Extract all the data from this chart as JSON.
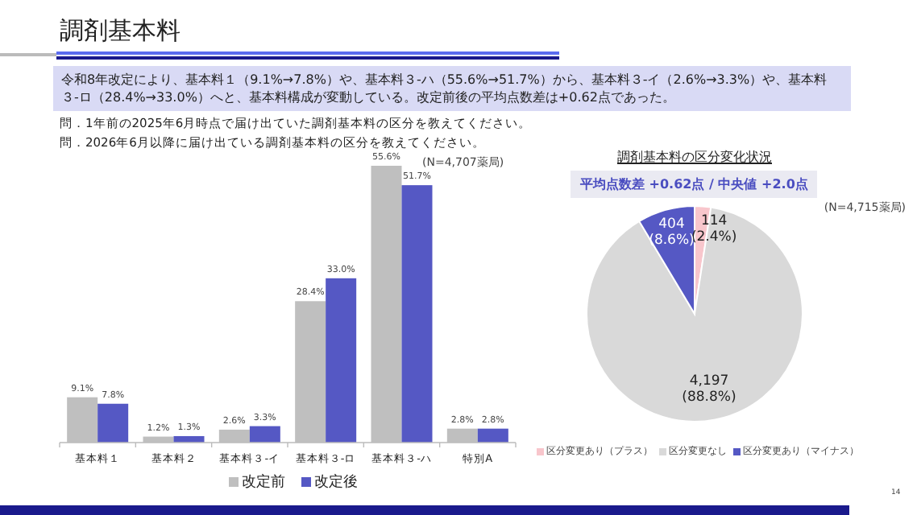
{
  "chart_data": [
    {
      "type": "bar",
      "title": "調剤基本料",
      "subtitle": "令和8年改定により、基本料１（9.1%→7.8%）や、基本料３-ハ（55.6%→51.7%）から、基本料３-イ（2.6%→3.3%）や、基本料３-ロ（28.4%→33.0%）へと、基本料構成が変動している。改定前後の平均点数差は+0.62点であった。",
      "annotations": [
        "問．1年前の2025年6月時点で届け出ていた調剤基本料の区分を教えてください。",
        "問．2026年6月以降に届け出ている調剤基本料の区分を教えてください。",
        "(N=4,707薬局)"
      ],
      "categories": [
        "基本料１",
        "基本料２",
        "基本料３-イ",
        "基本料３-ロ",
        "基本料３-ハ",
        "特別A"
      ],
      "series": [
        {
          "name": "改定前",
          "color": "#bfbfbf",
          "values": [
            9.1,
            1.2,
            2.6,
            28.4,
            55.6,
            2.8
          ],
          "value_labels": [
            "9.1%",
            "1.2%",
            "2.6%",
            "28.4%",
            "55.6%",
            "2.8%"
          ]
        },
        {
          "name": "改定後",
          "color": "#5558c4",
          "values": [
            7.8,
            1.3,
            3.3,
            33.0,
            51.7,
            2.8
          ],
          "value_labels": [
            "7.8%",
            "1.3%",
            "3.3%",
            "33.0%",
            "51.7%",
            "2.8%"
          ]
        }
      ],
      "legend": "bottom"
    },
    {
      "type": "pie",
      "title": "調剤基本料の区分変化状況",
      "annotations": [
        "平均点数差 +0.62点 / 中央値 +2.0点",
        "(N=4,715薬局)",
        "14"
      ],
      "categories": [
        "区分変更あり（プラス）",
        "区分変更なし",
        "区分変更あり（マイナス）"
      ],
      "values": [
        114,
        4197,
        404
      ],
      "colors": [
        "#f8c6cc",
        "#d9d9d9",
        "#5558c4"
      ],
      "value_labels": [
        "114 (2.4%)",
        "4,197 (88.8%)",
        "404 (8.6%)"
      ],
      "legend": "bottom"
    }
  ]
}
